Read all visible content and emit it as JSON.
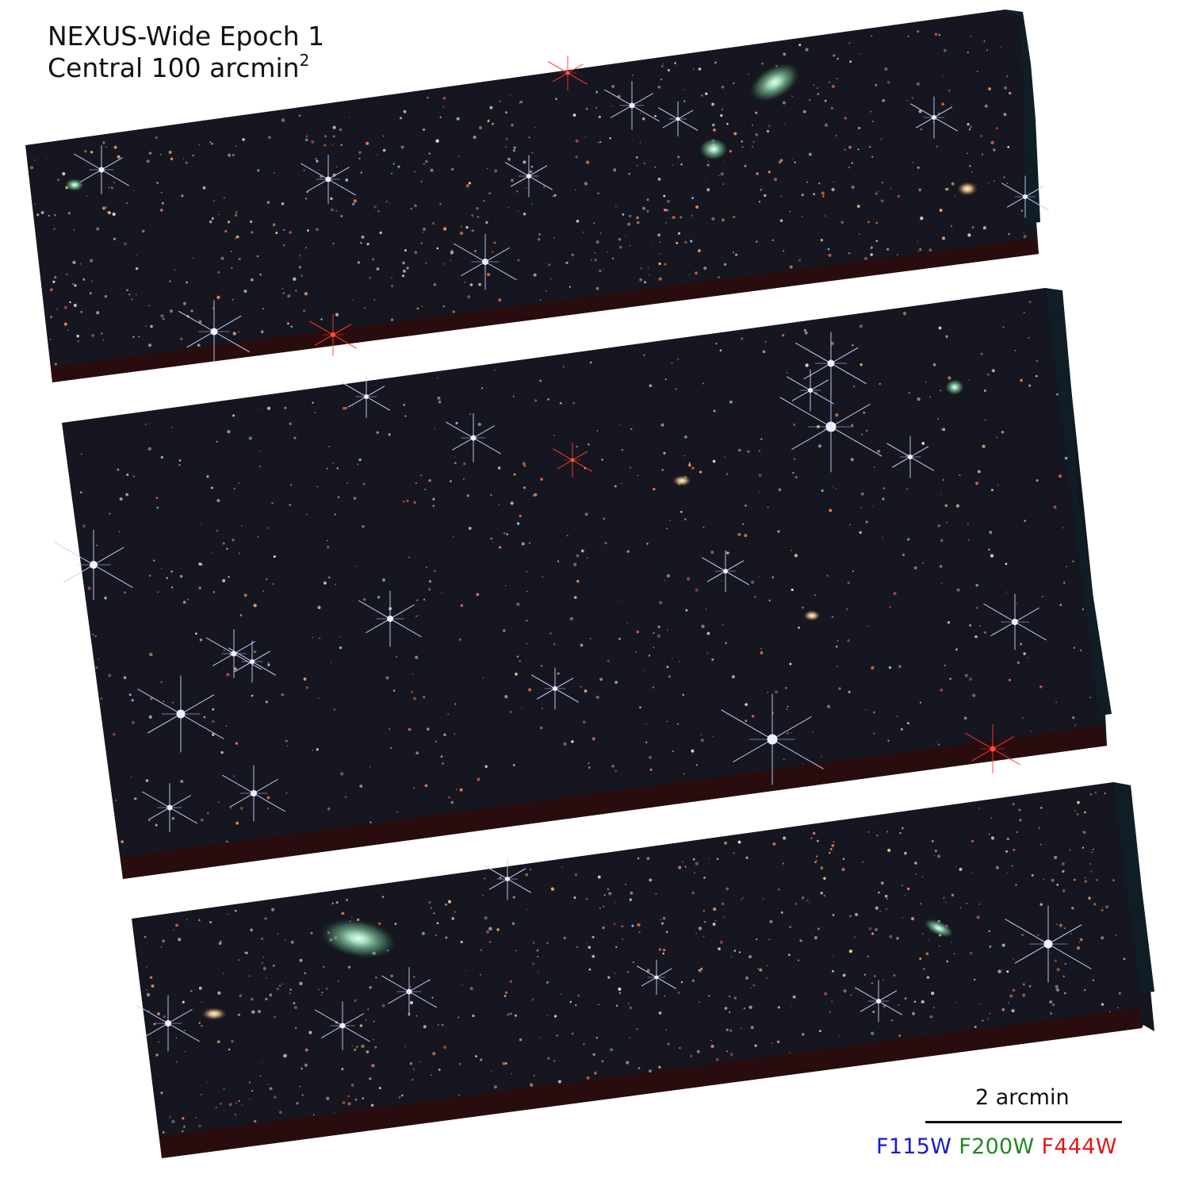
{
  "title": {
    "line1": "NEXUS-Wide Epoch 1",
    "line2_prefix": "Central 100 arcmin",
    "line2_superscript": "2"
  },
  "scale_bar": {
    "label": "2 arcmin"
  },
  "filters": [
    {
      "name": "F115W",
      "color": "#1a1acc"
    },
    {
      "name": "F200W",
      "color": "#1f8a1f"
    },
    {
      "name": "F444W",
      "color": "#e01818"
    }
  ],
  "colors": {
    "sky": "#141522",
    "sky_edge": "#2a0808",
    "background": "#ffffff"
  }
}
